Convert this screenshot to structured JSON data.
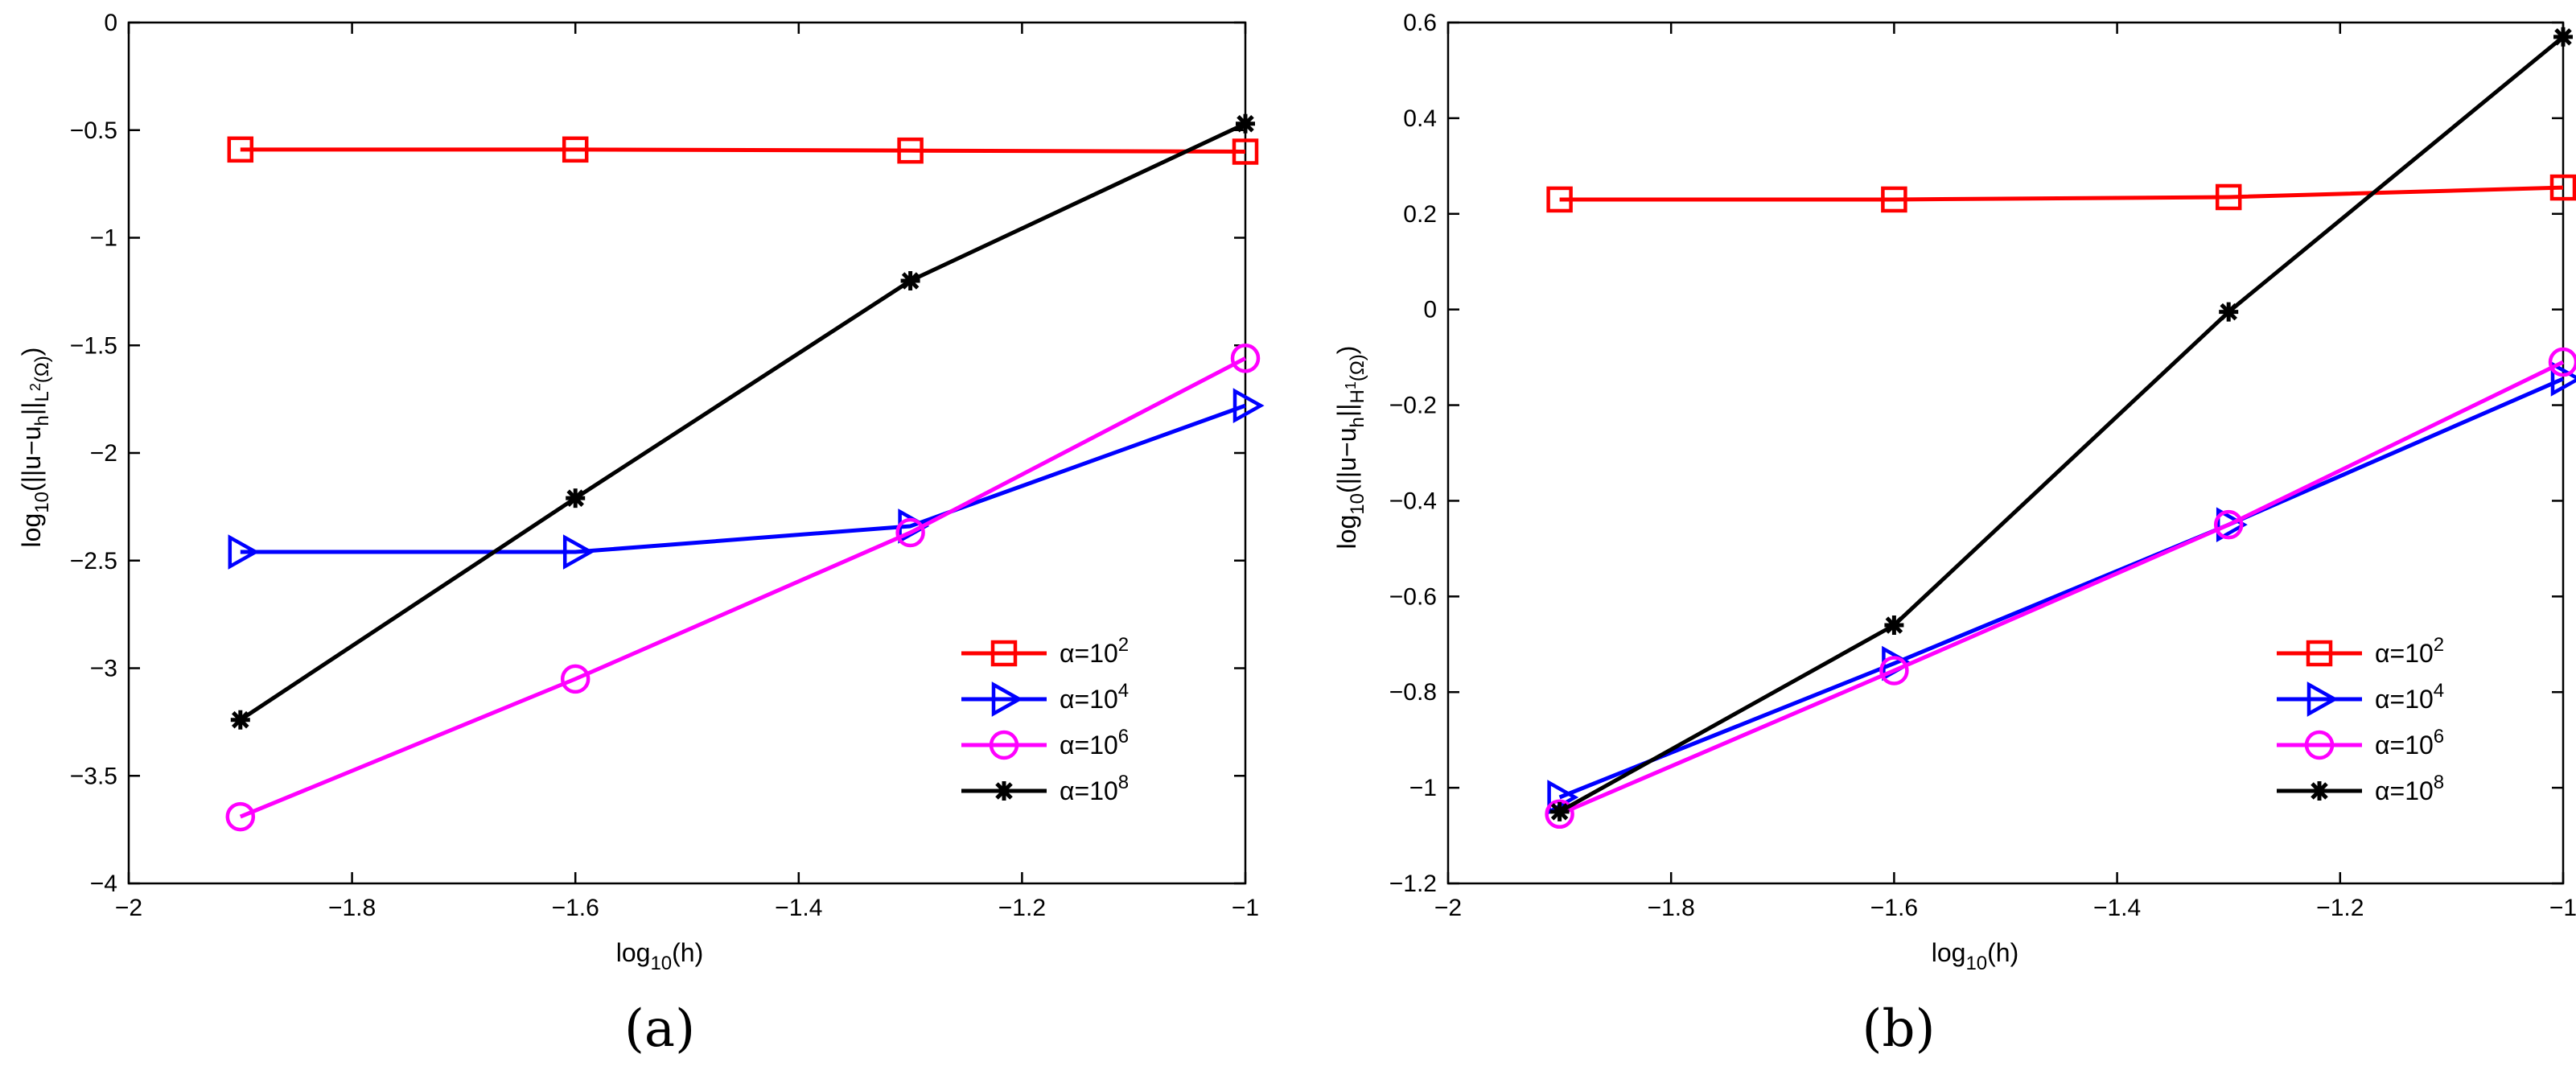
{
  "chart_data": [
    {
      "type": "line",
      "panel_label": "(a)",
      "xlabel_base": "log",
      "xlabel_sub": "10",
      "xlabel_arg": "(h)",
      "ylabel_base": "log",
      "ylabel_sub": "10",
      "ylabel_norm_open": "(||u−u",
      "ylabel_norm_sub": "h",
      "ylabel_norm_close": "||",
      "ylabel_space": "L",
      "ylabel_space_sup": "2",
      "ylabel_domain": "(Ω)",
      "ylabel_end": ")",
      "xlim": [
        -2,
        -1
      ],
      "ylim": [
        -4,
        0
      ],
      "xticks": [
        -2,
        -1.8,
        -1.6,
        -1.4,
        -1.2,
        -1
      ],
      "xtick_labels": [
        "−2",
        "−1.8",
        "−1.6",
        "−1.4",
        "−1.2",
        "−1"
      ],
      "yticks": [
        -4,
        -3.5,
        -3,
        -2.5,
        -2,
        -1.5,
        -1,
        -0.5,
        0
      ],
      "ytick_labels": [
        "−4",
        "−3.5",
        "−3",
        "−2.5",
        "−2",
        "−1.5",
        "−1",
        "−0.5",
        "0"
      ],
      "x": [
        -1.9,
        -1.6,
        -1.3,
        -1.0
      ],
      "series": [
        {
          "name_base": "α=10",
          "name_exp": "2",
          "color": "#ff0000",
          "marker": "square",
          "values": [
            -0.59,
            -0.59,
            -0.595,
            -0.6
          ]
        },
        {
          "name_base": "α=10",
          "name_exp": "4",
          "color": "#0000ff",
          "marker": "triangle-right",
          "values": [
            -2.46,
            -2.46,
            -2.34,
            -1.78
          ]
        },
        {
          "name_base": "α=10",
          "name_exp": "6",
          "color": "#ff00ff",
          "marker": "circle",
          "values": [
            -3.69,
            -3.05,
            -2.37,
            -1.56
          ]
        },
        {
          "name_base": "α=10",
          "name_exp": "8",
          "color": "#000000",
          "marker": "star",
          "values": [
            -3.24,
            -2.21,
            -1.2,
            -0.47
          ]
        }
      ],
      "legend_position": "bottom-right"
    },
    {
      "type": "line",
      "panel_label": "(b)",
      "xlabel_base": "log",
      "xlabel_sub": "10",
      "xlabel_arg": "(h)",
      "ylabel_base": "log",
      "ylabel_sub": "10",
      "ylabel_norm_open": "(||u−u",
      "ylabel_norm_sub": "h",
      "ylabel_norm_close": "||",
      "ylabel_space": "H",
      "ylabel_space_sup": "1",
      "ylabel_domain": "(Ω)",
      "ylabel_end": ")",
      "xlim": [
        -2,
        -1
      ],
      "ylim": [
        -1.2,
        0.6
      ],
      "xticks": [
        -2,
        -1.8,
        -1.6,
        -1.4,
        -1.2,
        -1
      ],
      "xtick_labels": [
        "−2",
        "−1.8",
        "−1.6",
        "−1.4",
        "−1.2",
        "−1"
      ],
      "yticks": [
        -1.2,
        -1,
        -0.8,
        -0.6,
        -0.4,
        -0.2,
        0,
        0.2,
        0.4,
        0.6
      ],
      "ytick_labels": [
        "−1.2",
        "−1",
        "−0.8",
        "−0.6",
        "−0.4",
        "−0.2",
        "0",
        "0.2",
        "0.4",
        "0.6"
      ],
      "x": [
        -1.9,
        -1.6,
        -1.3,
        -1.0
      ],
      "series": [
        {
          "name_base": "α=10",
          "name_exp": "2",
          "color": "#ff0000",
          "marker": "square",
          "values": [
            0.23,
            0.23,
            0.235,
            0.255
          ]
        },
        {
          "name_base": "α=10",
          "name_exp": "4",
          "color": "#0000ff",
          "marker": "triangle-right",
          "values": [
            -1.02,
            -0.74,
            -0.45,
            -0.145
          ]
        },
        {
          "name_base": "α=10",
          "name_exp": "6",
          "color": "#ff00ff",
          "marker": "circle",
          "values": [
            -1.055,
            -0.755,
            -0.45,
            -0.11
          ]
        },
        {
          "name_base": "α=10",
          "name_exp": "8",
          "color": "#000000",
          "marker": "star",
          "values": [
            -1.05,
            -0.66,
            -0.005,
            0.57
          ]
        }
      ],
      "legend_position": "bottom-right"
    }
  ]
}
